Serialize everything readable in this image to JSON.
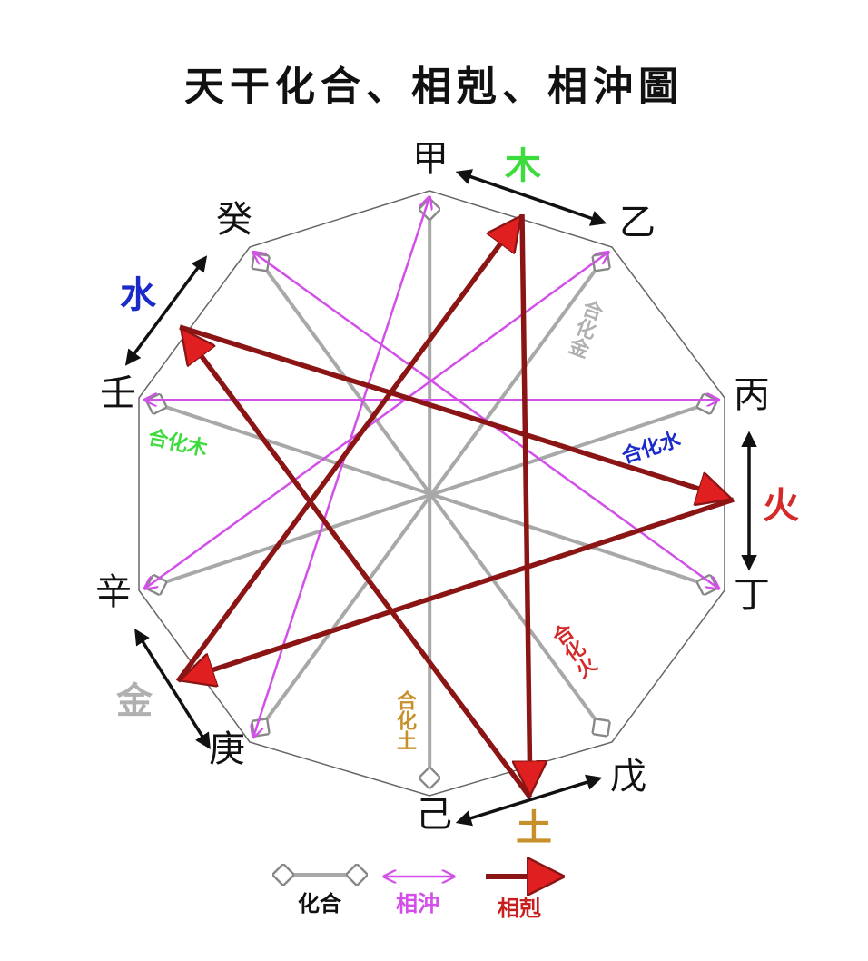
{
  "title": "天干化合、相剋、相沖圖",
  "stems": [
    "甲",
    "乙",
    "丙",
    "丁",
    "戊",
    "己",
    "庚",
    "辛",
    "壬",
    "癸"
  ],
  "elements": {
    "wood": {
      "label": "木",
      "color": "#3ddc3d"
    },
    "fire": {
      "label": "火",
      "color": "#d42a2a"
    },
    "earth": {
      "label": "土",
      "color": "#c8902a"
    },
    "metal": {
      "label": "金",
      "color": "#b0b0b0"
    },
    "water": {
      "label": "水",
      "color": "#1a2bc8"
    }
  },
  "combinations": [
    {
      "pair": [
        "甲",
        "己"
      ],
      "label": "合化土",
      "color": "#c8902a"
    },
    {
      "pair": [
        "乙",
        "庚"
      ],
      "label": "合化金",
      "color": "#b0b0b0"
    },
    {
      "pair": [
        "丙",
        "辛"
      ],
      "label": "合化水",
      "color": "#1a2bc8"
    },
    {
      "pair": [
        "丁",
        "壬"
      ],
      "label": "合化木",
      "color": "#3ddc3d"
    },
    {
      "pair": [
        "戊",
        "癸"
      ],
      "label": "合化火",
      "color": "#d42a2a"
    }
  ],
  "clashes": [
    [
      "甲",
      "庚"
    ],
    [
      "乙",
      "辛"
    ],
    [
      "丙",
      "壬"
    ],
    [
      "丁",
      "癸"
    ]
  ],
  "controls": [
    [
      "wood",
      "earth"
    ],
    [
      "earth",
      "water"
    ],
    [
      "water",
      "fire"
    ],
    [
      "fire",
      "metal"
    ],
    [
      "metal",
      "wood"
    ]
  ],
  "legend": {
    "combine": "化合",
    "clash": "相沖",
    "control": "相剋"
  },
  "colors": {
    "combine": "#a8a8a8",
    "clash": "#d24fe8",
    "control": "#8b1414",
    "control_head": "#e02020"
  }
}
